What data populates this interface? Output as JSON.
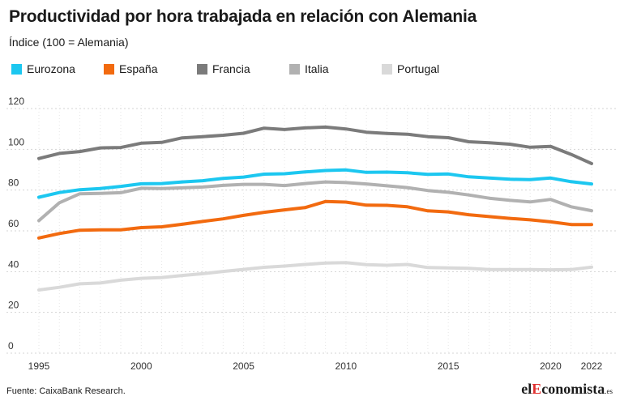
{
  "header": {
    "title": "Productividad por hora trabajada en relación con Alemania",
    "subtitle": "Índice (100 = Alemania)"
  },
  "legend": [
    {
      "label": "Eurozona",
      "color": "#1cc7f0"
    },
    {
      "label": "España",
      "color": "#f26a0f"
    },
    {
      "label": "Francia",
      "color": "#7b7b7b"
    },
    {
      "label": "Italia",
      "color": "#b1b1b1"
    },
    {
      "label": "Portugal",
      "color": "#d9d9d9"
    }
  ],
  "footer": {
    "source": "Fuente: CaixaBank Research.",
    "brand_prefix": "el",
    "brand_mid": "E",
    "brand_main": "conomista",
    "brand_suffix": ".es"
  },
  "chart_data": {
    "type": "line",
    "x": [
      1995,
      1996,
      1997,
      1998,
      1999,
      2000,
      2001,
      2002,
      2003,
      2004,
      2005,
      2006,
      2007,
      2008,
      2009,
      2010,
      2011,
      2012,
      2013,
      2014,
      2015,
      2016,
      2017,
      2018,
      2019,
      2020,
      2021,
      2022
    ],
    "x_ticks": [
      1995,
      2000,
      2005,
      2010,
      2015,
      2020,
      2022
    ],
    "y_ticks": [
      0,
      20,
      40,
      60,
      80,
      100,
      120
    ],
    "ylim": [
      0,
      120
    ],
    "grid": "horizontal dashed",
    "title": "Productividad por hora trabajada en relación con Alemania",
    "ylabel": "Índice (100 = Alemania)",
    "series": [
      {
        "name": "Eurozona",
        "color": "#1cc7f0",
        "values": [
          76.5,
          78.8,
          80.2,
          80.8,
          81.8,
          83.1,
          83.2,
          84,
          84.6,
          85.7,
          86.4,
          87.8,
          88,
          88.9,
          89.6,
          89.9,
          88.7,
          88.8,
          88.5,
          87.7,
          87.9,
          86.5,
          85.9,
          85.3,
          85.1,
          85.9,
          84.1,
          83
        ]
      },
      {
        "name": "España",
        "color": "#f26a0f",
        "values": [
          56.5,
          58.7,
          60.3,
          60.5,
          60.5,
          61.6,
          62,
          63.2,
          64.6,
          65.9,
          67.6,
          69.1,
          70.3,
          71.4,
          74.4,
          74.1,
          72.6,
          72.5,
          71.8,
          69.8,
          69.3,
          67.9,
          67,
          66.1,
          65.4,
          64.4,
          63.1,
          63.1
        ]
      },
      {
        "name": "Francia",
        "color": "#7b7b7b",
        "values": [
          95.5,
          98,
          98.9,
          100.7,
          100.9,
          103,
          103.4,
          105.6,
          106.2,
          106.9,
          107.9,
          110.4,
          109.7,
          110.5,
          110.9,
          110,
          108.4,
          107.8,
          107.4,
          106.2,
          105.7,
          103.7,
          103.2,
          102.5,
          101,
          101.4,
          97.5,
          93
        ]
      },
      {
        "name": "Italia",
        "color": "#b1b1b1",
        "values": [
          65,
          73.8,
          78.2,
          78.4,
          78.7,
          80.9,
          80.8,
          81.1,
          81.5,
          82.3,
          82.8,
          82.8,
          82.2,
          83.2,
          84,
          83.7,
          83,
          82.1,
          81.2,
          79.8,
          78.9,
          77.6,
          76,
          75,
          74.2,
          75.4,
          71.8,
          69.9
        ]
      },
      {
        "name": "Portugal",
        "color": "#d9d9d9",
        "values": [
          31,
          32.3,
          34,
          34.4,
          35.8,
          36.7,
          37.1,
          38.1,
          39,
          40.1,
          41.1,
          42.1,
          42.7,
          43.5,
          44.2,
          44.4,
          43.4,
          43.1,
          43.5,
          42,
          41.8,
          41.6,
          41,
          41,
          41,
          40.9,
          41,
          42.2
        ]
      }
    ]
  }
}
